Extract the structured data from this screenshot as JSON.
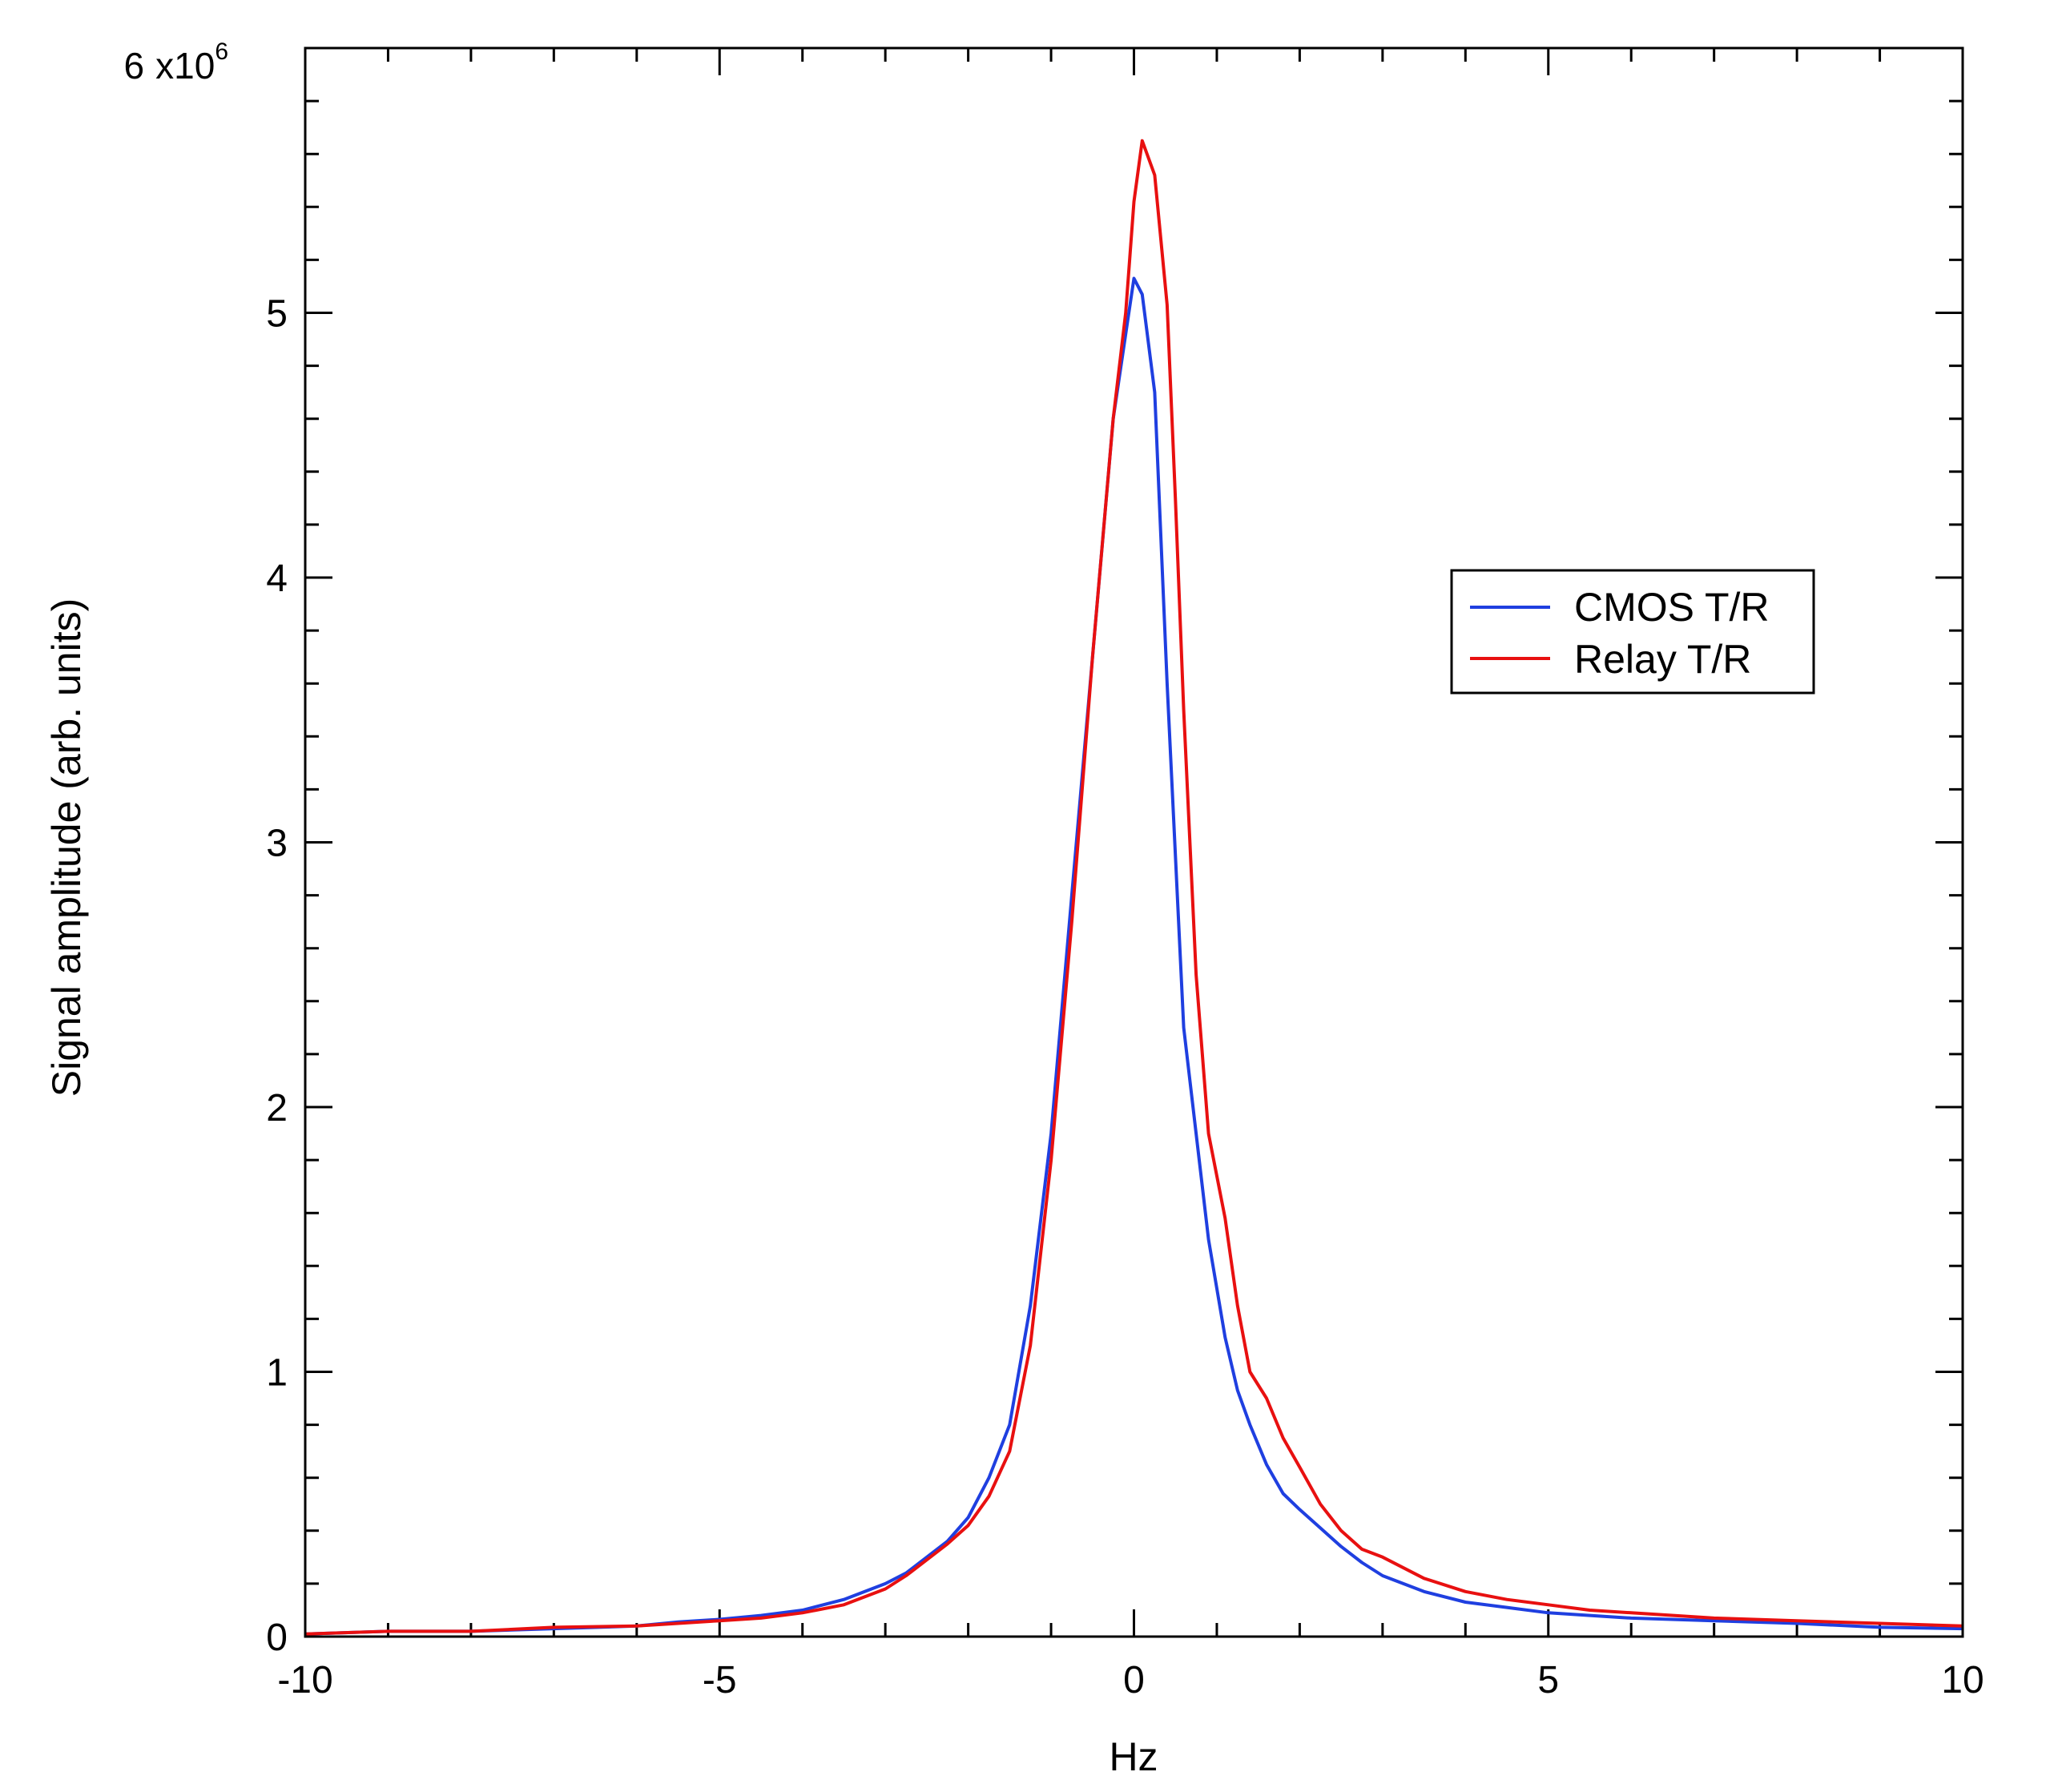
{
  "chart_data": {
    "type": "line",
    "xlabel": "Hz",
    "ylabel": "Signal amplitude (arb. units)",
    "xlim": [
      -10,
      10
    ],
    "ylim": [
      0,
      6000000
    ],
    "y_scale_label": {
      "base": "x10",
      "exponent": "6"
    },
    "x_ticks": [
      {
        "value": -10,
        "label": "-10"
      },
      {
        "value": -5,
        "label": "-5"
      },
      {
        "value": 0,
        "label": "0"
      },
      {
        "value": 5,
        "label": "5"
      },
      {
        "value": 10,
        "label": "10"
      }
    ],
    "y_ticks": [
      {
        "value": 0,
        "label": "0"
      },
      {
        "value": 1000000,
        "label": "1"
      },
      {
        "value": 2000000,
        "label": "2"
      },
      {
        "value": 3000000,
        "label": "3"
      },
      {
        "value": 4000000,
        "label": "4"
      },
      {
        "value": 5000000,
        "label": "5"
      },
      {
        "value": 6000000,
        "label": "6"
      }
    ],
    "grid": false,
    "legend_position": "right-middle",
    "series": [
      {
        "name": "CMOS T/R",
        "color": "#1f3fe0",
        "x": [
          -10,
          -9,
          -8,
          -7,
          -6,
          -5.5,
          -5,
          -4.5,
          -4,
          -3.5,
          -3,
          -2.75,
          -2.5,
          -2.25,
          -2,
          -1.75,
          -1.5,
          -1.25,
          -1,
          -0.75,
          -0.5,
          -0.25,
          -0.1,
          0,
          0.1,
          0.25,
          0.4,
          0.6,
          0.75,
          0.9,
          1.1,
          1.25,
          1.4,
          1.6,
          1.8,
          2,
          2.25,
          2.5,
          2.75,
          3,
          3.5,
          4,
          4.5,
          5,
          5.5,
          6,
          7,
          8,
          9,
          10
        ],
        "y": [
          10000,
          20000,
          20000,
          30000,
          40000,
          55000,
          65000,
          80000,
          100000,
          140000,
          200000,
          240000,
          300000,
          360000,
          450000,
          600000,
          800000,
          1250000,
          1900000,
          2800000,
          3700000,
          4600000,
          4920000,
          5130000,
          5070000,
          4700000,
          3600000,
          2300000,
          1900000,
          1500000,
          1130000,
          930000,
          800000,
          650000,
          540000,
          480000,
          410000,
          340000,
          280000,
          230000,
          170000,
          130000,
          110000,
          90000,
          80000,
          70000,
          60000,
          50000,
          35000,
          30000
        ]
      },
      {
        "name": "Relay T/R",
        "color": "#e81010",
        "x": [
          -10,
          -9,
          -8,
          -7,
          -6,
          -5.5,
          -5,
          -4.5,
          -4,
          -3.5,
          -3,
          -2.75,
          -2.5,
          -2.25,
          -2,
          -1.75,
          -1.5,
          -1.25,
          -1,
          -0.75,
          -0.5,
          -0.25,
          -0.1,
          0,
          0.1,
          0.25,
          0.4,
          0.5,
          0.6,
          0.75,
          0.9,
          1.1,
          1.25,
          1.4,
          1.6,
          1.8,
          2,
          2.25,
          2.5,
          2.75,
          3,
          3.5,
          4,
          4.5,
          5,
          5.5,
          6,
          7,
          8,
          9,
          10
        ],
        "y": [
          10000,
          20000,
          20000,
          35000,
          40000,
          50000,
          60000,
          70000,
          90000,
          120000,
          180000,
          230000,
          290000,
          350000,
          420000,
          530000,
          700000,
          1100000,
          1800000,
          2700000,
          3700000,
          4600000,
          5000000,
          5420000,
          5650000,
          5520000,
          5030000,
          4300000,
          3500000,
          2500000,
          1900000,
          1580000,
          1250000,
          1000000,
          900000,
          750000,
          640000,
          500000,
          400000,
          330000,
          300000,
          220000,
          170000,
          140000,
          120000,
          100000,
          90000,
          70000,
          60000,
          50000,
          40000
        ]
      }
    ]
  }
}
